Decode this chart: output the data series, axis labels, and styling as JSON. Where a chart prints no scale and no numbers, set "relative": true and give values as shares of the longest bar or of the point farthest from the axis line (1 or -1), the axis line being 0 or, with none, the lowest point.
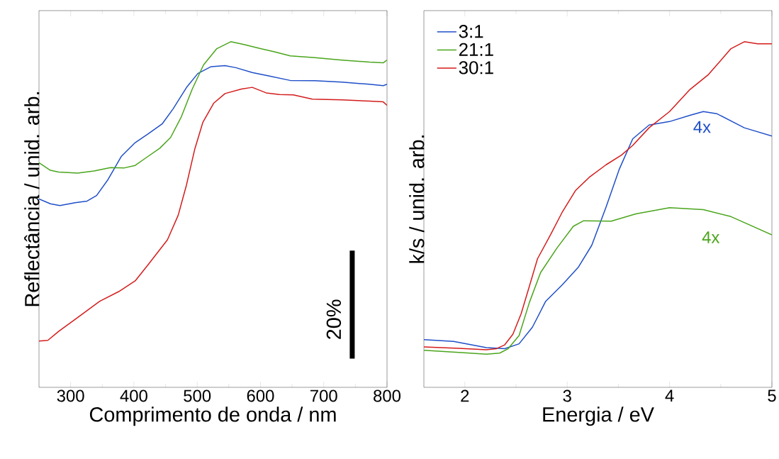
{
  "chart_data": [
    {
      "type": "line",
      "relative": true,
      "xlabel": "Comprimento de onda / nm",
      "ylabel": "Reflectância / unid. arb.",
      "xlim": [
        250,
        800
      ],
      "xticks": [
        300,
        400,
        500,
        600,
        700,
        800
      ],
      "legend": false,
      "grid": false,
      "annotations": [
        "20%"
      ],
      "series": [
        {
          "color": "#1f4fc8",
          "x": [
            250,
            268,
            283,
            307,
            326,
            341,
            359,
            380,
            402,
            423,
            445,
            462,
            484,
            501,
            522,
            544,
            561,
            587,
            613,
            647,
            686,
            729,
            772,
            794,
            800
          ],
          "values": [
            0.545,
            0.531,
            0.526,
            0.534,
            0.539,
            0.555,
            0.601,
            0.668,
            0.708,
            0.734,
            0.763,
            0.806,
            0.87,
            0.908,
            0.928,
            0.931,
            0.925,
            0.911,
            0.901,
            0.888,
            0.887,
            0.883,
            0.877,
            0.873,
            0.877
          ]
        },
        {
          "color": "#4aa51c",
          "x": [
            250,
            268,
            281,
            311,
            337,
            363,
            385,
            402,
            419,
            441,
            458,
            475,
            492,
            510,
            531,
            553,
            574,
            600,
            622,
            647,
            686,
            729,
            772,
            794,
            800
          ],
          "values": [
            0.65,
            0.628,
            0.623,
            0.62,
            0.626,
            0.636,
            0.635,
            0.642,
            0.664,
            0.692,
            0.723,
            0.783,
            0.862,
            0.933,
            0.98,
            1.0,
            0.992,
            0.98,
            0.971,
            0.959,
            0.954,
            0.947,
            0.941,
            0.939,
            0.947
          ]
        },
        {
          "color": "#d41c1c",
          "x": [
            250,
            264,
            281,
            311,
            346,
            376,
            402,
            423,
            453,
            470,
            483,
            496,
            509,
            526,
            544,
            570,
            587,
            609,
            630,
            652,
            682,
            729,
            772,
            794,
            800
          ],
          "values": [
            0.134,
            0.136,
            0.162,
            0.202,
            0.249,
            0.277,
            0.308,
            0.356,
            0.427,
            0.498,
            0.585,
            0.688,
            0.767,
            0.822,
            0.85,
            0.863,
            0.868,
            0.852,
            0.847,
            0.846,
            0.834,
            0.832,
            0.828,
            0.826,
            0.816
          ]
        }
      ]
    },
    {
      "type": "line",
      "relative": true,
      "xlabel": "Energia / eV",
      "ylabel": "k/s / unid. arb.",
      "xlim": [
        1.6,
        5
      ],
      "xticks": [
        2,
        3,
        4,
        5
      ],
      "legend": "top left",
      "grid": false,
      "annotations": [
        "4x",
        "4x"
      ],
      "series": [
        {
          "name": "3:1",
          "color": "#1f4fc8",
          "x": [
            1.6,
            1.89,
            2.21,
            2.39,
            2.53,
            2.66,
            2.79,
            2.95,
            3.11,
            3.24,
            3.38,
            3.51,
            3.64,
            3.8,
            4.0,
            4.2,
            4.33,
            4.46,
            4.73,
            5.0
          ],
          "values": [
            0.138,
            0.133,
            0.115,
            0.112,
            0.126,
            0.174,
            0.249,
            0.296,
            0.348,
            0.411,
            0.522,
            0.632,
            0.719,
            0.759,
            0.769,
            0.787,
            0.798,
            0.792,
            0.751,
            0.727
          ]
        },
        {
          "name": "21:1",
          "color": "#4aa51c",
          "x": [
            1.6,
            1.94,
            2.21,
            2.34,
            2.42,
            2.53,
            2.63,
            2.74,
            2.9,
            3.06,
            3.16,
            3.43,
            3.67,
            4.0,
            4.33,
            4.6,
            5.0
          ],
          "values": [
            0.107,
            0.101,
            0.096,
            0.099,
            0.111,
            0.15,
            0.245,
            0.332,
            0.403,
            0.466,
            0.482,
            0.481,
            0.502,
            0.52,
            0.514,
            0.494,
            0.441
          ]
        },
        {
          "name": "30:1",
          "color": "#d41c1c",
          "x": [
            1.6,
            1.94,
            2.21,
            2.31,
            2.39,
            2.47,
            2.55,
            2.63,
            2.71,
            2.84,
            2.95,
            3.08,
            3.22,
            3.38,
            3.53,
            3.64,
            3.8,
            4.0,
            4.2,
            4.38,
            4.6,
            4.73,
            4.86,
            5.0
          ],
          "values": [
            0.117,
            0.113,
            0.109,
            0.112,
            0.123,
            0.154,
            0.213,
            0.292,
            0.372,
            0.443,
            0.506,
            0.569,
            0.609,
            0.644,
            0.672,
            0.7,
            0.751,
            0.798,
            0.862,
            0.905,
            0.98,
            1.0,
            0.994,
            0.994
          ]
        }
      ]
    }
  ]
}
